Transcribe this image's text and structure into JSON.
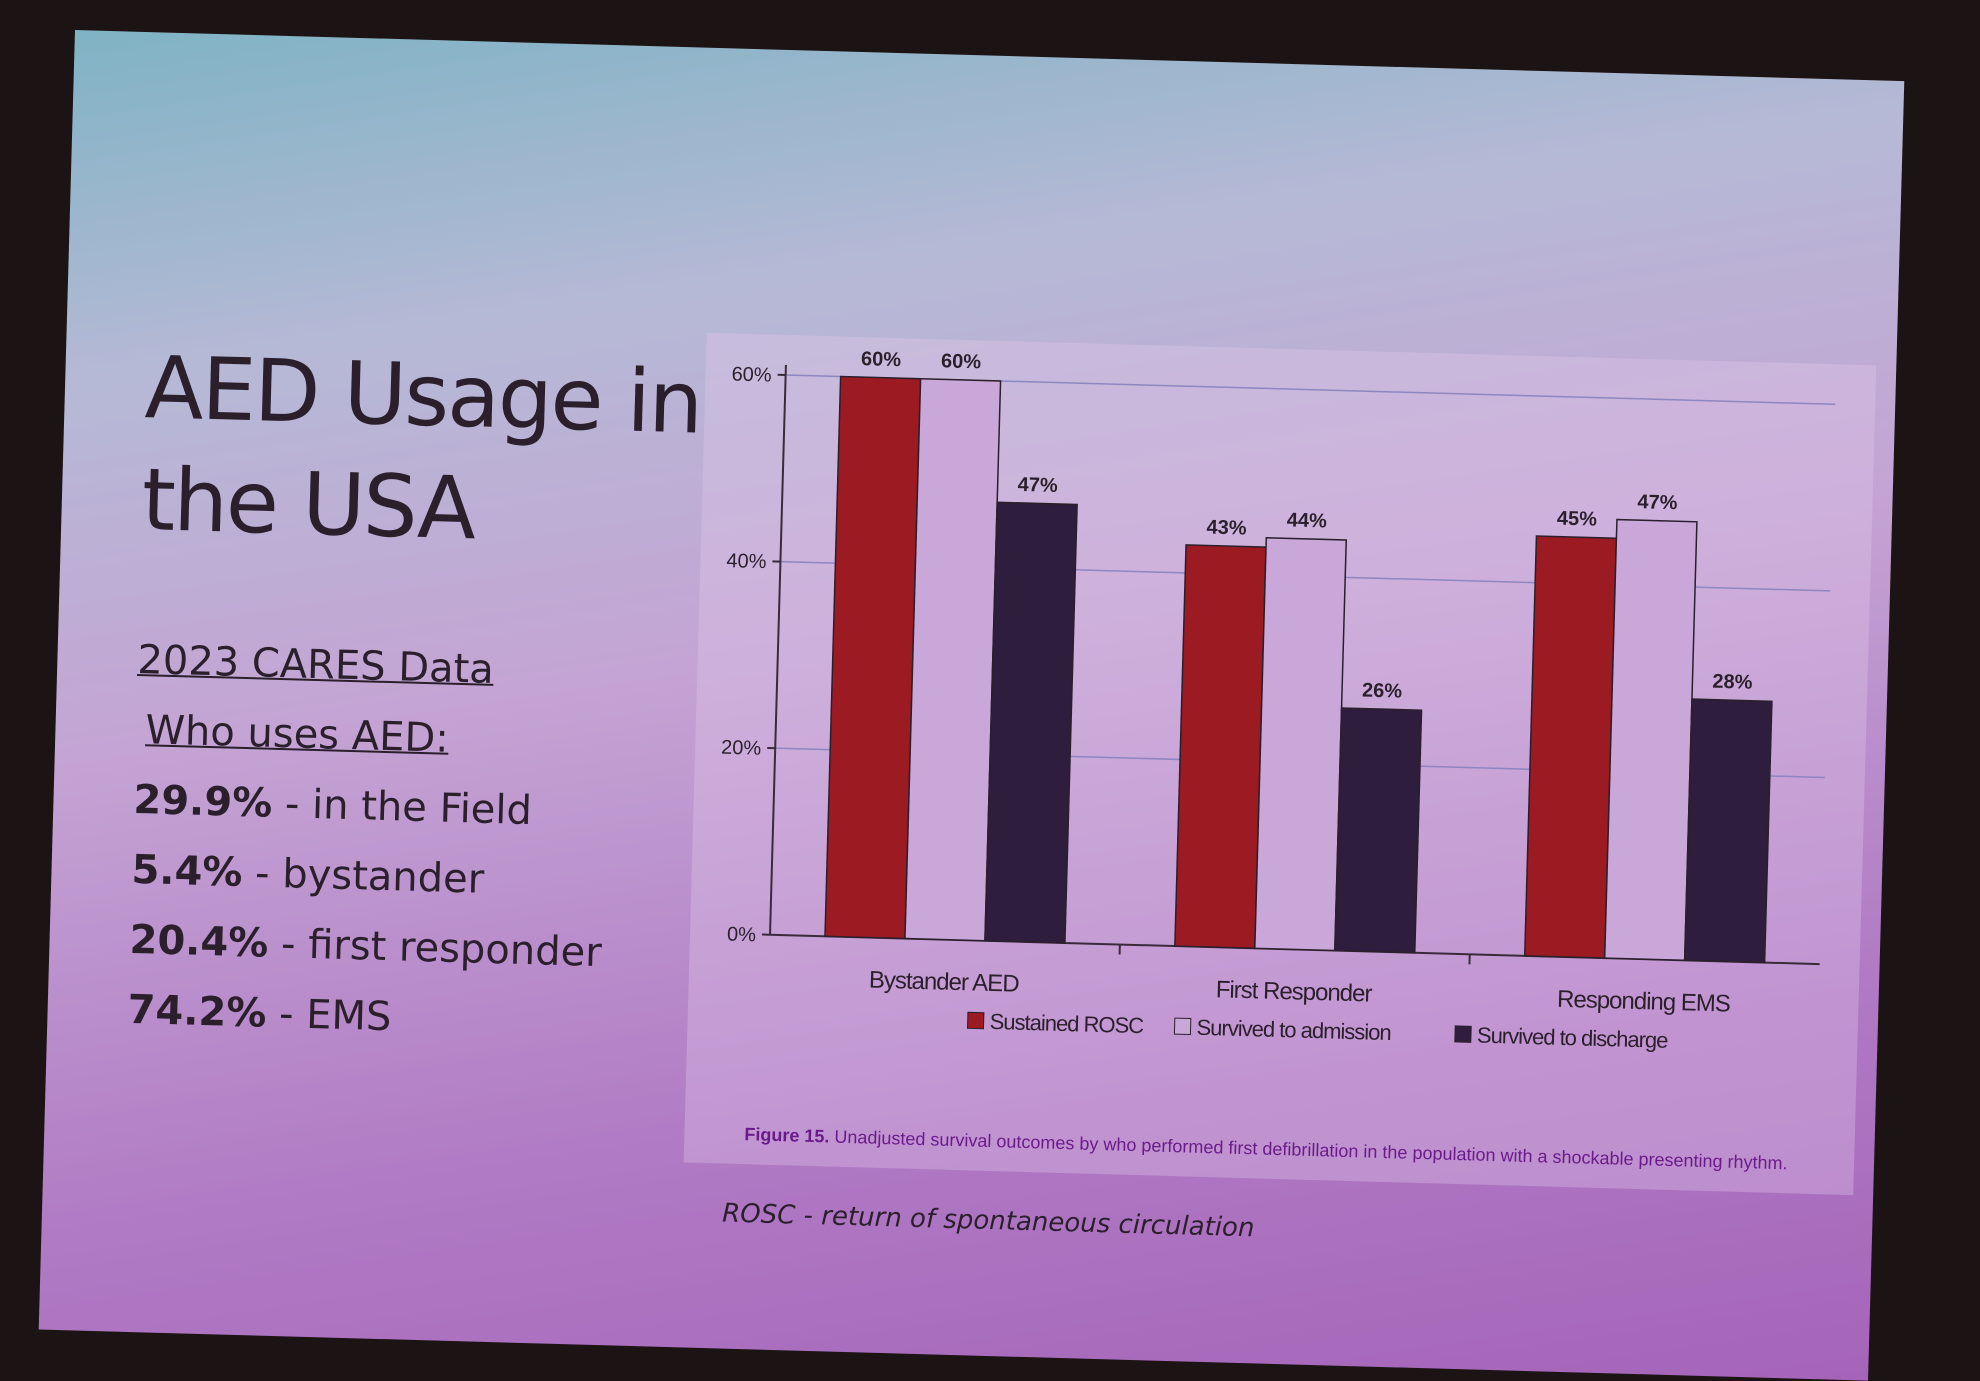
{
  "slide": {
    "title_line1": "AED Usage in",
    "title_line2": "the USA",
    "subtitle1": "2023 CARES Data",
    "subtitle2": "Who uses AED:",
    "stats": [
      {
        "value": "29.9%",
        "label": " - in the Field"
      },
      {
        "value": "5.4%",
        "label": " - bystander"
      },
      {
        "value": "20.4%",
        "label": " - first responder"
      },
      {
        "value": "74.2%",
        "label": " -  EMS"
      }
    ],
    "note": "ROSC - return of spontaneous circulation"
  },
  "figure": {
    "caption_bold": "Figure 15.",
    "caption_text": " Unadjusted survival outcomes by who performed first defibrillation in the population with a shockable presenting rhythm."
  },
  "chart_data": {
    "type": "bar",
    "categories": [
      "Bystander AED",
      "First Responder",
      "Responding EMS"
    ],
    "series": [
      {
        "name": "Sustained ROSC",
        "values": [
          60,
          43,
          45
        ],
        "labels": [
          "60%",
          "43%",
          "45%"
        ],
        "color": "#9c1a22"
      },
      {
        "name": "Survived to admission",
        "values": [
          60,
          44,
          47
        ],
        "labels": [
          "60%",
          "44%",
          "47%"
        ],
        "color": "#c9a7d8"
      },
      {
        "name": "Survived to discharge",
        "values": [
          47,
          26,
          28
        ],
        "labels": [
          "47%",
          "26%",
          "28%"
        ],
        "color": "#2e1d3c"
      }
    ],
    "yticks": [
      "0%",
      "20%",
      "40%",
      "60%"
    ],
    "ylim": [
      0,
      60
    ],
    "grid": true,
    "legend": "bottom"
  }
}
